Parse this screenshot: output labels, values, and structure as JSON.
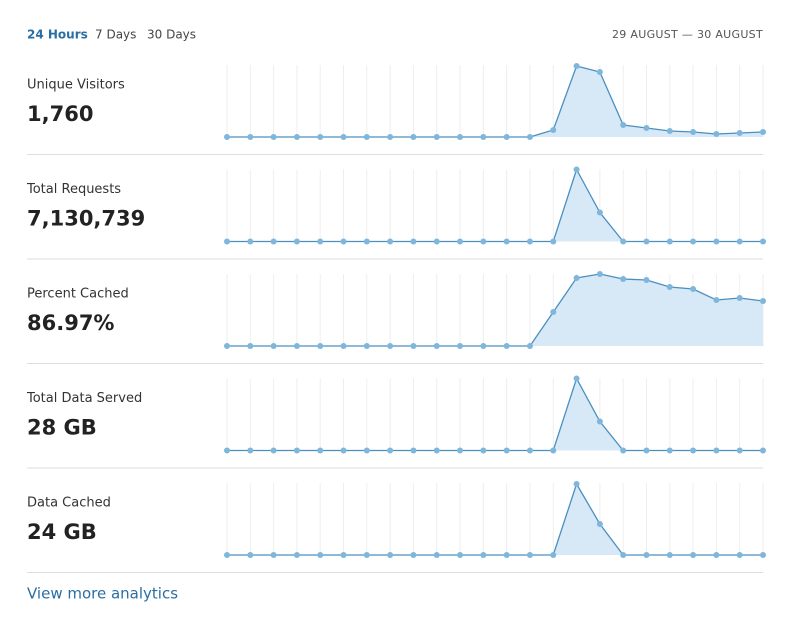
{
  "tabs": [
    "24 Hours",
    "7 Days",
    "30 Days"
  ],
  "date_range": "29 AUGUST — 30 AUGUST",
  "metrics": [
    {
      "label": "Unique Visitors",
      "value": "1,760",
      "spark": [
        0,
        0,
        0,
        0,
        0,
        0,
        0,
        0,
        0,
        0,
        0,
        0,
        0,
        0,
        7,
        71,
        65,
        12,
        9,
        6,
        5,
        3,
        4,
        5
      ]
    },
    {
      "label": "Total Requests",
      "value": "7,130,739",
      "spark": [
        0,
        0,
        0,
        0,
        0,
        0,
        0,
        0,
        0,
        0,
        0,
        0,
        0,
        0,
        0,
        72,
        29,
        0,
        0,
        0,
        0,
        0,
        0,
        0
      ]
    },
    {
      "label": "Percent Cached",
      "value": "86.97%",
      "spark": [
        0,
        0,
        0,
        0,
        0,
        0,
        0,
        0,
        0,
        0,
        0,
        0,
        0,
        0,
        34,
        68,
        72,
        67,
        66,
        59,
        57,
        46,
        48,
        45
      ]
    },
    {
      "label": "Total Data Served",
      "value": "28 GB",
      "spark": [
        0,
        0,
        0,
        0,
        0,
        0,
        0,
        0,
        0,
        0,
        0,
        0,
        0,
        0,
        0,
        72,
        29,
        0,
        0,
        0,
        0,
        0,
        0,
        0
      ]
    },
    {
      "label": "Data Cached",
      "value": "24 GB",
      "spark": [
        0,
        0,
        0,
        0,
        0,
        0,
        0,
        0,
        0,
        0,
        0,
        0,
        0,
        0,
        0,
        71,
        31,
        0,
        0,
        0,
        0,
        0,
        0,
        0
      ]
    }
  ],
  "link": "View more analytics"
}
